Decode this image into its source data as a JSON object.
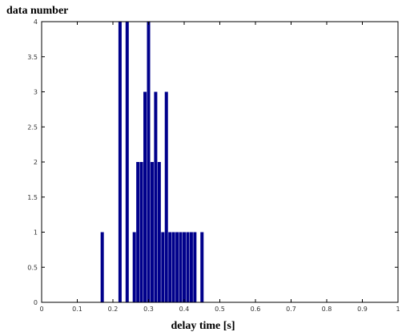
{
  "chart_data": {
    "type": "bar",
    "title": "",
    "xlabel": "delay time [s]",
    "ylabel": "data number",
    "xlim": [
      0,
      1
    ],
    "ylim": [
      0,
      4
    ],
    "xticks": [
      "0",
      "0.1",
      "0.2",
      "0.3",
      "0.4",
      "0.5",
      "0.6",
      "0.7",
      "0.8",
      "0.9",
      "1"
    ],
    "yticks": [
      "0",
      "0.5",
      "1",
      "1.5",
      "2",
      "2.5",
      "3",
      "3.5",
      "4"
    ],
    "grid": false,
    "bar_color": "#00008B",
    "bar_width": 0.01,
    "x": [
      0.17,
      0.22,
      0.24,
      0.26,
      0.27,
      0.28,
      0.29,
      0.3,
      0.31,
      0.32,
      0.33,
      0.34,
      0.35,
      0.36,
      0.37,
      0.38,
      0.39,
      0.4,
      0.41,
      0.42,
      0.43,
      0.45
    ],
    "values": [
      1,
      4,
      4,
      1,
      2,
      2,
      3,
      4,
      2,
      3,
      2,
      1,
      3,
      1,
      1,
      1,
      1,
      1,
      1,
      1,
      1,
      1
    ]
  }
}
